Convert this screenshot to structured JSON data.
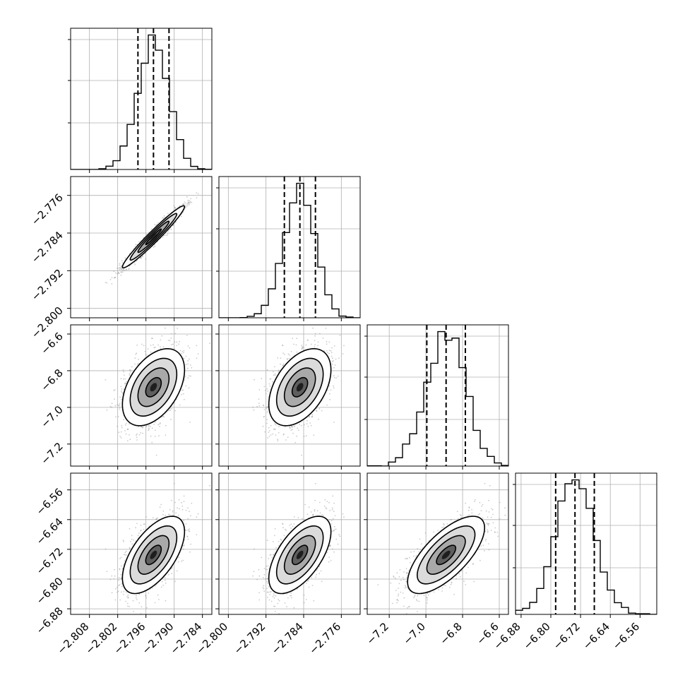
{
  "chart_data": {
    "type": "corner",
    "parameters": [
      {
        "mean": -2.7944,
        "sigma": 0.0033,
        "quantiles": [
          -2.7977,
          -2.7944,
          -2.7911
        ],
        "range": [
          -2.812,
          -2.782
        ],
        "ticks": [
          -2.808,
          -2.802,
          -2.796,
          -2.79,
          -2.784
        ],
        "tick_labels": [
          "−2.808",
          "−2.802",
          "−2.796",
          "−2.790",
          "−2.784"
        ]
      },
      {
        "mean": -2.7848,
        "sigma": 0.0033,
        "quantiles": [
          -2.7881,
          -2.7848,
          -2.7815
        ],
        "range": [
          -2.802,
          -2.772
        ],
        "ticks": [
          -2.8,
          -2.792,
          -2.784,
          -2.776
        ],
        "tick_labels": [
          "−2.800",
          "−2.792",
          "−2.784",
          "−2.776"
        ]
      },
      {
        "mean": -6.89,
        "sigma": 0.105,
        "quantiles": [
          -6.995,
          -6.89,
          -6.785
        ],
        "range": [
          -7.32,
          -6.55
        ],
        "ticks": [
          -7.2,
          -7.0,
          -6.8,
          -6.6
        ],
        "tick_labels": [
          "−7.2",
          "−7.0",
          "−6.8",
          "−6.6"
        ]
      },
      {
        "mean": -6.735,
        "sigma": 0.052,
        "quantiles": [
          -6.787,
          -6.735,
          -6.683
        ],
        "range": [
          -6.895,
          -6.515
        ],
        "ticks": [
          -6.88,
          -6.8,
          -6.72,
          -6.64,
          -6.56
        ],
        "tick_labels": [
          "−6.88",
          "−6.80",
          "−6.72",
          "−6.64",
          "−6.56"
        ]
      }
    ],
    "correlations": [
      [
        1,
        0.97,
        0.45,
        0.6
      ],
      [
        0.97,
        1,
        0.45,
        0.6
      ],
      [
        0.45,
        0.45,
        1,
        0.7
      ],
      [
        0.6,
        0.6,
        0.7,
        1
      ]
    ],
    "histogram_bins": 20,
    "contour_levels_sigma": [
      0.5,
      1.0,
      1.5,
      2.0
    ],
    "grid": true,
    "colors": {
      "points": "#8c8c8c",
      "lines": "#000000",
      "grid": "#b0b0b0"
    }
  }
}
